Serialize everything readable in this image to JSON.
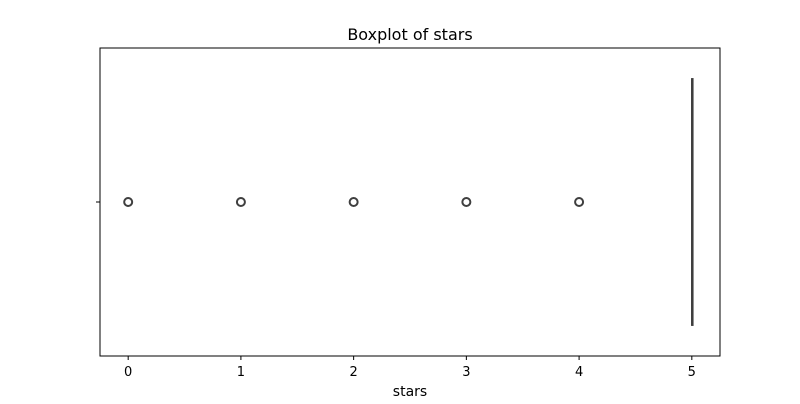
{
  "chart_data": {
    "type": "boxplot",
    "title": "Boxplot of stars",
    "xlabel": "stars",
    "ylabel": "",
    "xlim": [
      -0.25,
      5.25
    ],
    "xticks": [
      0,
      1,
      2,
      3,
      4,
      5
    ],
    "xtick_labels": [
      "0",
      "1",
      "2",
      "3",
      "4",
      "5"
    ],
    "orientation": "horizontal",
    "box": {
      "q1": 5,
      "median": 5,
      "q3": 5,
      "whisker_low": 5,
      "whisker_high": 5
    },
    "outliers": [
      0,
      1,
      2,
      3,
      4
    ],
    "grid": false,
    "legend": "none",
    "colors": {
      "box_line": "#3f3f3f",
      "outlier_edge": "#3f3f3f",
      "axes": "#000000"
    }
  }
}
